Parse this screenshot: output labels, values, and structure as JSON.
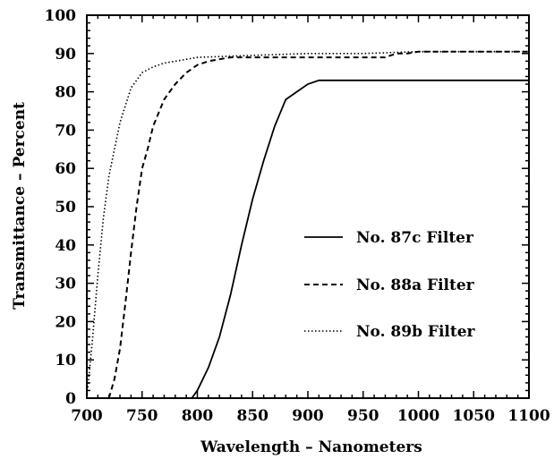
{
  "chart_data": {
    "type": "line",
    "xlabel": "Wavelength  –  Nanometers",
    "ylabel": "Transmittance  –  Percent",
    "xlim": [
      700,
      1100
    ],
    "ylim": [
      0,
      100
    ],
    "xticks": [
      700,
      750,
      800,
      850,
      900,
      950,
      1000,
      1050,
      1100
    ],
    "yticks": [
      0,
      10,
      20,
      30,
      40,
      50,
      60,
      70,
      80,
      90,
      100
    ],
    "xtick_labels": [
      "700",
      "750",
      "800",
      "850",
      "900",
      "950",
      "1000",
      "1050",
      "1100"
    ],
    "ytick_labels": [
      "0",
      "10",
      "20",
      "30",
      "40",
      "50",
      "60",
      "70",
      "80",
      "90",
      "100"
    ],
    "grid": false,
    "legend_position": "center-right",
    "series": [
      {
        "name": "No. 87c Filter",
        "style": "solid",
        "x": [
          795,
          800,
          810,
          820,
          830,
          840,
          850,
          860,
          870,
          880,
          890,
          900,
          910,
          920,
          950,
          1000,
          1050,
          1100
        ],
        "y": [
          0,
          2,
          8,
          16,
          27,
          40,
          52,
          62,
          71,
          78,
          80,
          82,
          83,
          83,
          83,
          83,
          83,
          83
        ]
      },
      {
        "name": "No. 88a Filter",
        "style": "dashed",
        "x": [
          720,
          725,
          730,
          735,
          740,
          745,
          750,
          755,
          760,
          770,
          780,
          790,
          800,
          810,
          820,
          830,
          850,
          900,
          950,
          970,
          980,
          990,
          1000,
          1050,
          1100
        ],
        "y": [
          0,
          5,
          13,
          25,
          38,
          50,
          60,
          65,
          71,
          78,
          82,
          85,
          87,
          88,
          88.5,
          89,
          89,
          89,
          89,
          89,
          90,
          90,
          90.5,
          90.5,
          90.5
        ]
      },
      {
        "name": "No. 89b Filter",
        "style": "dotted",
        "x": [
          700,
          705,
          710,
          715,
          720,
          730,
          740,
          750,
          760,
          770,
          780,
          800,
          850,
          900,
          950,
          1000,
          1050,
          1100
        ],
        "y": [
          0,
          15,
          32,
          47,
          58,
          72,
          81,
          85,
          86.5,
          87.5,
          88,
          89,
          89.5,
          90,
          90,
          90.5,
          90.5,
          90.5
        ]
      }
    ]
  }
}
